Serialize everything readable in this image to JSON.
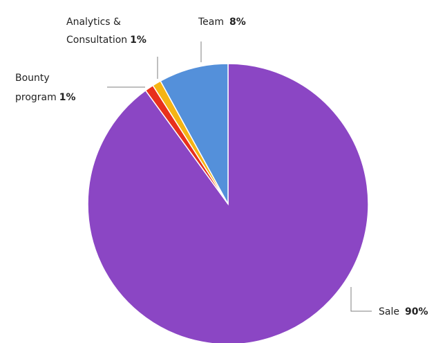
{
  "chart_data": {
    "type": "pie",
    "slices": [
      {
        "label": "Sale",
        "value": 90,
        "pct_label": "90%",
        "color": "#8B46C4"
      },
      {
        "label": "Bounty program",
        "label_lines": [
          "Bounty",
          "program"
        ],
        "value": 1,
        "pct_label": "1%",
        "color": "#E8301C"
      },
      {
        "label": "Analytics & Consultation",
        "label_lines": [
          "Analytics &",
          "Consultation"
        ],
        "value": 1,
        "pct_label": "1%",
        "color": "#F5B414"
      },
      {
        "label": "Team",
        "value": 8,
        "pct_label": "8%",
        "color": "#5490DA"
      }
    ],
    "start_angle": "12 o'clock",
    "direction": "clockwise",
    "legend": "none (data labels with leader lines)"
  }
}
